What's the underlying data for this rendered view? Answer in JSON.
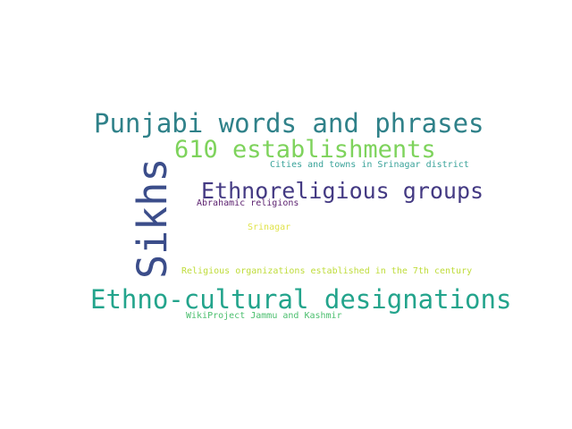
{
  "words": [
    {
      "text": "Punjabi words and phrases",
      "color": "#2f8189"
    },
    {
      "text": "610 establishments",
      "color": "#7ed35c"
    },
    {
      "text": "Cities and towns in Srinagar district",
      "color": "#3aa39a"
    },
    {
      "text": "Sikhs",
      "color": "#3b4d8a"
    },
    {
      "text": "Ethnoreligious groups",
      "color": "#443a83"
    },
    {
      "text": "Abrahamic religions",
      "color": "#5a1f6e"
    },
    {
      "text": "Srinagar",
      "color": "#e0e34a"
    },
    {
      "text": "Religious organizations established in the 7th century",
      "color": "#bfdc3a"
    },
    {
      "text": "Ethno-cultural designations",
      "color": "#23a48c"
    },
    {
      "text": "WikiProject Jammu and Kashmir",
      "color": "#4cbf6f"
    }
  ]
}
